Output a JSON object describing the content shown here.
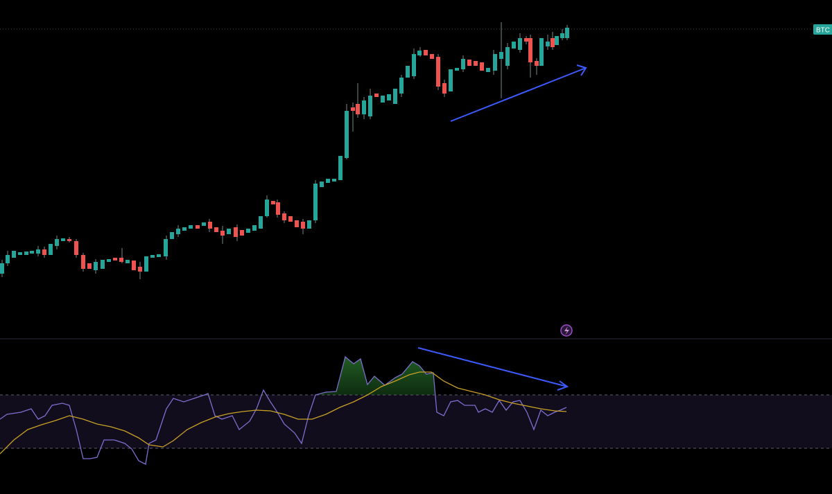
{
  "price_tag": "BTC"
}
